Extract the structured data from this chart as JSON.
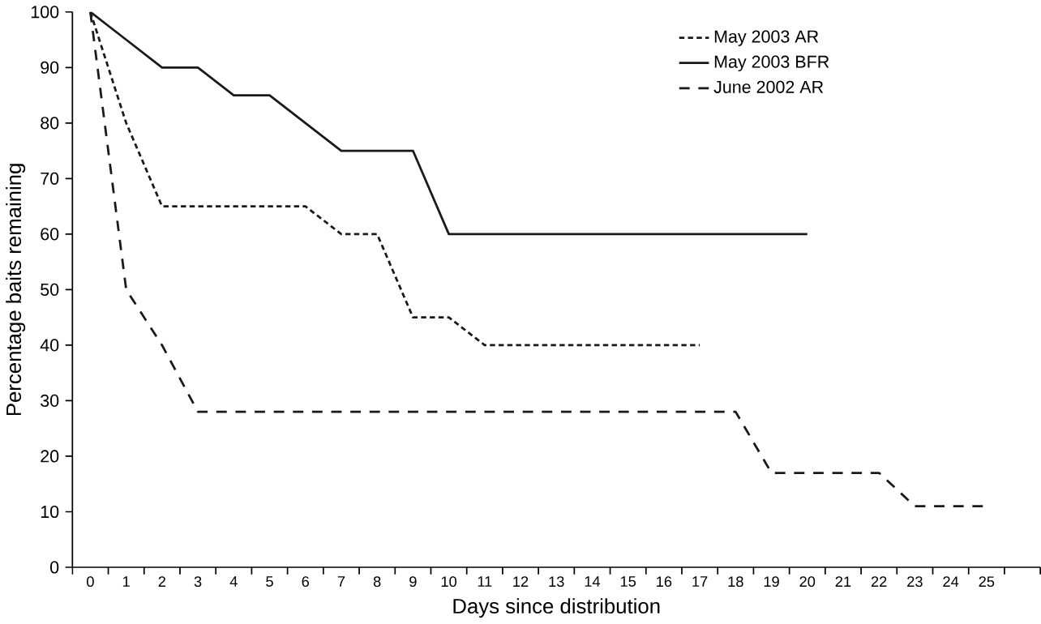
{
  "chart_data": {
    "type": "line",
    "xlabel": "Days since distribution",
    "ylabel": "Percentage baits remaining",
    "categories": [
      "0",
      "1",
      "2",
      "3",
      "4",
      "5",
      "6",
      "7",
      "8",
      "9",
      "10",
      "11",
      "12",
      "13",
      "14",
      "15",
      "16",
      "17",
      "18",
      "19",
      "20",
      "21",
      "22",
      "23",
      "24",
      "25",
      null
    ],
    "series": [
      {
        "name": "May 2003 AR",
        "color": "#1a1a1a",
        "line_style": "dotted",
        "values": [
          100,
          80,
          65,
          65,
          65,
          65,
          65,
          60,
          60,
          45,
          45,
          40,
          40,
          40,
          40,
          40,
          40,
          40,
          null,
          null,
          null,
          null,
          null,
          null,
          null,
          null,
          null
        ]
      },
      {
        "name": "May 2003 BFR",
        "color": "#1a1a1a",
        "line_style": "solid",
        "values": [
          100,
          95,
          90,
          90,
          85,
          85,
          80,
          75,
          75,
          75,
          60,
          60,
          60,
          60,
          60,
          60,
          60,
          60,
          60,
          60,
          60,
          null,
          null,
          null,
          null,
          null,
          null
        ]
      },
      {
        "name": "June 2002 AR",
        "color": "#1a1a1a",
        "line_style": "dashed",
        "values": [
          100,
          50,
          40,
          28,
          28,
          28,
          28,
          28,
          28,
          28,
          28,
          28,
          28,
          28,
          28,
          28,
          28,
          28,
          28,
          17,
          17,
          17,
          17,
          11,
          11,
          11,
          null
        ]
      }
    ],
    "ylim": [
      0,
      100
    ],
    "yticks": [
      0,
      10,
      20,
      30,
      40,
      50,
      60,
      70,
      80,
      90,
      100
    ],
    "grid": false,
    "legend": "top right",
    "marker": "none"
  }
}
